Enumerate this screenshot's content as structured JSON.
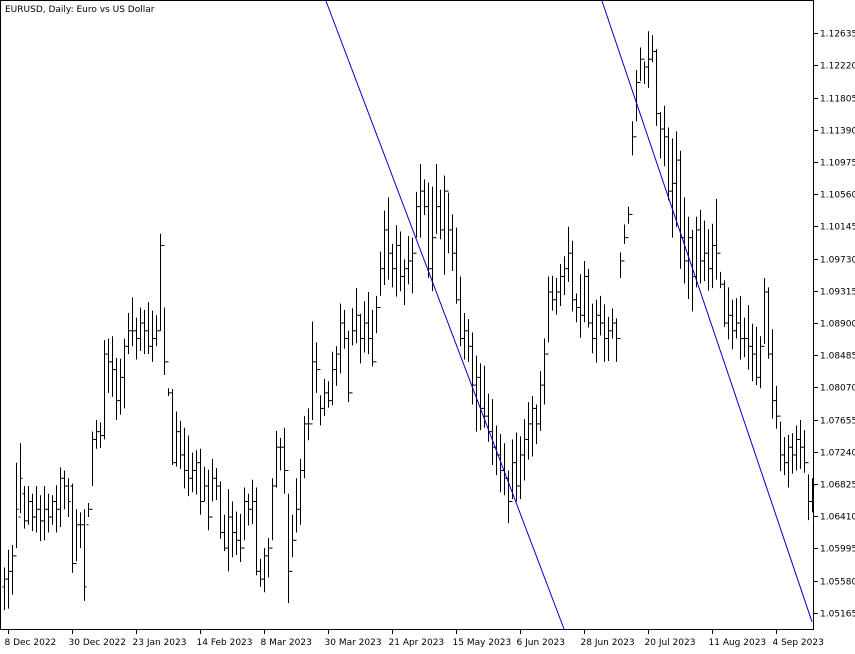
{
  "chart_data": {
    "type": "ohlc",
    "title": "EURUSD, Daily:  Euro vs US Dollar",
    "grid": false,
    "ylim": [
      1.04957,
      1.1305
    ],
    "y_ticks": [
      "1.12635",
      "1.12220",
      "1.11805",
      "1.11390",
      "1.10975",
      "1.10560",
      "1.10145",
      "1.09730",
      "1.09315",
      "1.08900",
      "1.08485",
      "1.08070",
      "1.07655",
      "1.07240",
      "1.06825",
      "1.06410",
      "1.05995",
      "1.05580",
      "1.05165"
    ],
    "x_ticks": [
      "8 Dec 2022",
      "30 Dec 2022",
      "23 Jan 2023",
      "14 Feb 2023",
      "8 Mar 2023",
      "30 Mar 2023",
      "21 Apr 2023",
      "15 May 2023",
      "6 Jun 2023",
      "28 Jun 2023",
      "20 Jul 2023",
      "11 Aug 2023",
      "4 Sep 2023"
    ],
    "x_tick_bar_index": [
      1,
      17,
      33,
      49,
      65,
      81,
      97,
      113,
      129,
      145,
      161,
      177,
      193
    ],
    "bar_count": 202,
    "colors": {
      "bar": "#000000",
      "trendline": "#0000c8",
      "frame": "#000000",
      "background": "#ffffff"
    },
    "trendlines": [
      {
        "start": {
          "bar": 80.5,
          "price": 1.1305
        },
        "end": {
          "bar": 140.0,
          "price": 1.04957
        }
      },
      {
        "start": {
          "bar": 149.5,
          "price": 1.1305
        },
        "end": {
          "bar": 202.0,
          "price": 1.0505
        }
      }
    ],
    "bars": [
      [
        1.055,
        1.0575,
        1.052,
        1.056
      ],
      [
        1.056,
        1.0598,
        1.0522,
        1.057
      ],
      [
        1.057,
        1.0604,
        1.054,
        1.059
      ],
      [
        1.059,
        1.071,
        1.06,
        1.065
      ],
      [
        1.064,
        1.0735,
        1.0645,
        1.069
      ],
      [
        1.067,
        1.068,
        1.0625,
        1.0635
      ],
      [
        1.0635,
        1.068,
        1.063,
        1.066
      ],
      [
        1.066,
        1.067,
        1.0622,
        1.064
      ],
      [
        1.064,
        1.068,
        1.062,
        1.065
      ],
      [
        1.065,
        1.0668,
        1.0609,
        1.0635
      ],
      [
        1.0635,
        1.068,
        1.061,
        1.065
      ],
      [
        1.065,
        1.067,
        1.062,
        1.064
      ],
      [
        1.064,
        1.0668,
        1.063,
        1.066
      ],
      [
        1.066,
        1.0681,
        1.062,
        1.065
      ],
      [
        1.065,
        1.0704,
        1.0627,
        1.069
      ],
      [
        1.069,
        1.07,
        1.065,
        1.068
      ],
      [
        1.068,
        1.069,
        1.064,
        1.066
      ],
      [
        1.068,
        1.0683,
        1.0568,
        1.058
      ],
      [
        1.058,
        1.065,
        1.0583,
        1.063
      ],
      [
        1.063,
        1.0646,
        1.06,
        1.063
      ],
      [
        1.063,
        1.065,
        1.0532,
        1.055
      ],
      [
        1.063,
        1.0658,
        1.064,
        1.065
      ],
      [
        1.065,
        1.075,
        1.068,
        1.074
      ],
      [
        1.074,
        1.0765,
        1.0728,
        1.075
      ],
      [
        1.075,
        1.0762,
        1.0729,
        1.0745
      ],
      [
        1.0745,
        1.0868,
        1.074,
        1.085
      ],
      [
        1.085,
        1.087,
        1.08,
        1.084
      ],
      [
        1.084,
        1.0873,
        1.0795,
        1.083
      ],
      [
        1.083,
        1.0845,
        1.0765,
        1.079
      ],
      [
        1.079,
        1.0844,
        1.0772,
        1.082
      ],
      [
        1.082,
        1.087,
        1.078,
        1.086
      ],
      [
        1.086,
        1.0903,
        1.085,
        1.088
      ],
      [
        1.088,
        1.0923,
        1.086,
        1.088
      ],
      [
        1.088,
        1.0897,
        1.0843,
        1.087
      ],
      [
        1.087,
        1.091,
        1.0854,
        1.089
      ],
      [
        1.089,
        1.0907,
        1.085,
        1.088
      ],
      [
        1.088,
        1.0917,
        1.085,
        1.086
      ],
      [
        1.086,
        1.0906,
        1.084,
        1.087
      ],
      [
        1.087,
        1.09,
        1.086,
        1.088
      ],
      [
        1.088,
        1.1005,
        1.088,
        1.099
      ],
      [
        1.099,
        1.091,
        1.0823,
        1.084
      ],
      [
        1.084,
        1.0806,
        1.0796,
        1.08
      ],
      [
        1.08,
        1.0805,
        1.0707,
        1.071
      ],
      [
        1.071,
        1.0776,
        1.0705,
        1.075
      ],
      [
        1.075,
        1.0764,
        1.0702,
        1.072
      ],
      [
        1.072,
        1.0755,
        1.0677,
        1.07
      ],
      [
        1.07,
        1.0745,
        1.0667,
        1.069
      ],
      [
        1.069,
        1.0723,
        1.0672,
        1.07
      ],
      [
        1.07,
        1.0726,
        1.0669,
        1.071
      ],
      [
        1.071,
        1.0728,
        1.0643,
        1.066
      ],
      [
        1.066,
        1.0705,
        1.066,
        1.068
      ],
      [
        1.068,
        1.0701,
        1.0623,
        1.064
      ],
      [
        1.064,
        1.0715,
        1.066,
        1.069
      ],
      [
        1.069,
        1.0703,
        1.0662,
        1.068
      ],
      [
        1.068,
        1.0686,
        1.0612,
        1.062
      ],
      [
        1.062,
        1.0643,
        1.0596,
        1.06
      ],
      [
        1.06,
        1.0676,
        1.057,
        1.064
      ],
      [
        1.064,
        1.066,
        1.0588,
        1.062
      ],
      [
        1.062,
        1.0647,
        1.0591,
        1.061
      ],
      [
        1.061,
        1.0644,
        1.0582,
        1.06
      ],
      [
        1.06,
        1.0678,
        1.061,
        1.066
      ],
      [
        1.066,
        1.067,
        1.0629,
        1.065
      ],
      [
        1.065,
        1.0688,
        1.0631,
        1.066
      ],
      [
        1.066,
        1.0678,
        1.0565,
        1.057
      ],
      [
        1.057,
        1.0586,
        1.055,
        1.056
      ],
      [
        1.056,
        1.06,
        1.0543,
        1.059
      ],
      [
        1.059,
        1.0613,
        1.0562,
        1.06
      ],
      [
        1.06,
        1.069,
        1.061,
        1.068
      ],
      [
        1.068,
        1.0751,
        1.0678,
        1.073
      ],
      [
        1.073,
        1.0742,
        1.07,
        1.073
      ],
      [
        1.073,
        1.0755,
        1.067,
        1.07
      ],
      [
        1.07,
        1.067,
        1.0529,
        1.057
      ],
      [
        1.057,
        1.0643,
        1.0588,
        1.061
      ],
      [
        1.061,
        1.069,
        1.062,
        1.065
      ],
      [
        1.065,
        1.0715,
        1.063,
        1.07
      ],
      [
        1.07,
        1.077,
        1.069,
        1.076
      ],
      [
        1.076,
        1.078,
        1.0739,
        1.076
      ],
      [
        1.076,
        1.0892,
        1.0765,
        1.084
      ],
      [
        1.084,
        1.0865,
        1.08,
        1.083
      ],
      [
        1.083,
        1.0797,
        1.0758,
        1.078
      ],
      [
        1.078,
        1.0818,
        1.077,
        1.08
      ],
      [
        1.08,
        1.0815,
        1.0781,
        1.079
      ],
      [
        1.079,
        1.0853,
        1.0784,
        1.083
      ],
      [
        1.083,
        1.086,
        1.0809,
        1.085
      ],
      [
        1.085,
        1.0915,
        1.0825,
        1.089
      ],
      [
        1.089,
        1.0907,
        1.0857,
        1.087
      ],
      [
        1.087,
        1.088,
        1.0788,
        1.08
      ],
      [
        1.08,
        1.0909,
        1.0861,
        1.088
      ],
      [
        1.088,
        1.0935,
        1.0864,
        1.09
      ],
      [
        1.09,
        1.0902,
        1.0838,
        1.087
      ],
      [
        1.087,
        1.0918,
        1.0852,
        1.089
      ],
      [
        1.089,
        1.093,
        1.085,
        1.087
      ],
      [
        1.087,
        1.0907,
        1.0834,
        1.084
      ],
      [
        1.084,
        1.0925,
        1.0877,
        1.091
      ],
      [
        1.091,
        1.0982,
        1.0925,
        1.096
      ],
      [
        1.096,
        1.1035,
        1.0939,
        1.101
      ],
      [
        1.101,
        1.1052,
        1.0946,
        1.098
      ],
      [
        1.098,
        1.0992,
        1.0936,
        1.096
      ],
      [
        1.096,
        1.1016,
        1.0924,
        1.099
      ],
      [
        1.099,
        1.1008,
        1.0931,
        1.095
      ],
      [
        1.095,
        1.0972,
        1.0913,
        1.096
      ],
      [
        1.096,
        1.1002,
        1.094,
        1.097
      ],
      [
        1.097,
        1.1,
        1.0928,
        1.098
      ],
      [
        1.098,
        1.1059,
        1.1,
        1.104
      ],
      [
        1.104,
        1.1095,
        1.1,
        1.106
      ],
      [
        1.106,
        1.1075,
        1.1029,
        1.104
      ],
      [
        1.104,
        1.1071,
        1.0948,
        1.096
      ],
      [
        1.096,
        1.1066,
        1.0931,
        1.1
      ],
      [
        1.1,
        1.1095,
        1.1005,
        1.104
      ],
      [
        1.104,
        1.1062,
        1.0998,
        1.101
      ],
      [
        1.101,
        1.108,
        1.0952,
        1.106
      ],
      [
        1.106,
        1.1058,
        1.098,
        1.101
      ],
      [
        1.101,
        1.103,
        1.0957,
        1.098
      ],
      [
        1.098,
        1.1013,
        1.0915,
        1.092
      ],
      [
        1.092,
        1.095,
        1.086,
        1.087
      ],
      [
        1.087,
        1.0903,
        1.0843,
        1.088
      ],
      [
        1.088,
        1.0895,
        1.084,
        1.086
      ],
      [
        1.086,
        1.0878,
        1.0785,
        1.081
      ],
      [
        1.081,
        1.0848,
        1.075,
        1.082
      ],
      [
        1.082,
        1.0838,
        1.0752,
        1.078
      ],
      [
        1.078,
        1.0835,
        1.0755,
        1.077
      ],
      [
        1.077,
        1.0799,
        1.0737,
        1.075
      ],
      [
        1.075,
        1.0792,
        1.0707,
        1.073
      ],
      [
        1.073,
        1.0758,
        1.0694,
        1.072
      ],
      [
        1.072,
        1.0747,
        1.0672,
        1.07
      ],
      [
        1.07,
        1.0735,
        1.0668,
        1.069
      ],
      [
        1.069,
        1.07,
        1.0632,
        1.066
      ],
      [
        1.066,
        1.074,
        1.0663,
        1.071
      ],
      [
        1.071,
        1.0749,
        1.066,
        1.068
      ],
      [
        1.068,
        1.0744,
        1.0663,
        1.072
      ],
      [
        1.072,
        1.0766,
        1.0687,
        1.074
      ],
      [
        1.074,
        1.0788,
        1.0714,
        1.076
      ],
      [
        1.076,
        1.0796,
        1.0718,
        1.078
      ],
      [
        1.078,
        1.0785,
        1.0734,
        1.076
      ],
      [
        1.076,
        1.0828,
        1.0751,
        1.081
      ],
      [
        1.081,
        1.087,
        1.0785,
        1.085
      ],
      [
        1.085,
        1.095,
        1.0865,
        1.093
      ],
      [
        1.093,
        1.0951,
        1.0906,
        1.092
      ],
      [
        1.092,
        1.0948,
        1.0901,
        1.093
      ],
      [
        1.093,
        1.0966,
        1.0912,
        1.095
      ],
      [
        1.095,
        1.0976,
        1.0926,
        1.096
      ],
      [
        1.096,
        1.1014,
        1.0943,
        1.098
      ],
      [
        1.098,
        1.0996,
        1.0905,
        1.092
      ],
      [
        1.092,
        1.0928,
        1.0891,
        1.091
      ],
      [
        1.091,
        1.0953,
        1.0871,
        1.09
      ],
      [
        1.09,
        1.097,
        1.0891,
        1.095
      ],
      [
        1.095,
        1.096,
        1.0884,
        1.089
      ],
      [
        1.089,
        1.0915,
        1.0851,
        1.087
      ],
      [
        1.087,
        1.092,
        1.0839,
        1.09
      ],
      [
        1.09,
        1.0925,
        1.0874,
        1.089
      ],
      [
        1.089,
        1.0914,
        1.084,
        1.087
      ],
      [
        1.087,
        1.0898,
        1.0841,
        1.088
      ],
      [
        1.088,
        1.0909,
        1.087,
        1.089
      ],
      [
        1.089,
        1.0896,
        1.084,
        1.087
      ],
      [
        1.087,
        1.0981,
        1.0948,
        1.097
      ],
      [
        1.097,
        1.1017,
        1.0992,
        1.1
      ],
      [
        1.1,
        1.104,
        1.1018,
        1.103
      ],
      [
        1.103,
        1.115,
        1.1106,
        1.113
      ],
      [
        1.113,
        1.1216,
        1.115,
        1.12
      ],
      [
        1.12,
        1.1245,
        1.1202,
        1.123
      ],
      [
        1.123,
        1.1227,
        1.1198,
        1.122
      ],
      [
        1.122,
        1.1266,
        1.1193,
        1.123
      ],
      [
        1.123,
        1.1261,
        1.1226,
        1.124
      ],
      [
        1.124,
        1.1243,
        1.1144,
        1.116
      ],
      [
        1.116,
        1.1162,
        1.1102,
        1.114
      ],
      [
        1.114,
        1.117,
        1.1092,
        1.113
      ],
      [
        1.113,
        1.1142,
        1.1048,
        1.106
      ],
      [
        1.106,
        1.1128,
        1.1,
        1.107
      ],
      [
        1.107,
        1.1137,
        1.1014,
        1.11
      ],
      [
        1.11,
        1.1112,
        1.096,
        1.1
      ],
      [
        1.1,
        1.1052,
        1.0941,
        1.097
      ],
      [
        1.097,
        1.1027,
        1.0921,
        1.1
      ],
      [
        1.1,
        1.101,
        1.0905,
        1.095
      ],
      [
        1.095,
        1.1027,
        1.0936,
        1.101
      ],
      [
        1.101,
        1.1036,
        1.0941,
        1.097
      ],
      [
        1.097,
        1.1022,
        1.0944,
        1.098
      ],
      [
        1.098,
        1.1011,
        1.0932,
        1.096
      ],
      [
        1.096,
        1.1018,
        1.0935,
        1.099
      ],
      [
        1.099,
        1.105,
        1.0946,
        1.098
      ],
      [
        1.098,
        1.0956,
        1.0935,
        1.094
      ],
      [
        1.094,
        1.0945,
        1.0885,
        1.089
      ],
      [
        1.089,
        1.0936,
        1.0869,
        1.09
      ],
      [
        1.09,
        1.092,
        1.0856,
        1.088
      ],
      [
        1.088,
        1.0922,
        1.087,
        1.089
      ],
      [
        1.089,
        1.0925,
        1.0843,
        1.087
      ],
      [
        1.087,
        1.0897,
        1.0846,
        1.087
      ],
      [
        1.087,
        1.0913,
        1.083,
        1.086
      ],
      [
        1.086,
        1.0889,
        1.0815,
        1.085
      ],
      [
        1.085,
        1.0885,
        1.081,
        1.082
      ],
      [
        1.082,
        1.0873,
        1.0806,
        1.086
      ],
      [
        1.086,
        1.0948,
        1.0863,
        1.093
      ],
      [
        1.093,
        1.0936,
        1.0844,
        1.085
      ],
      [
        1.085,
        1.0882,
        1.0767,
        1.079
      ],
      [
        1.079,
        1.0809,
        1.0754,
        1.077
      ],
      [
        1.077,
        1.0763,
        1.0699,
        1.072
      ],
      [
        1.072,
        1.0743,
        1.0694,
        1.071
      ],
      [
        1.071,
        1.0746,
        1.0678,
        1.073
      ],
      [
        1.073,
        1.0748,
        1.0696,
        1.072
      ],
      [
        1.072,
        1.0758,
        1.07,
        1.074
      ],
      [
        1.074,
        1.0765,
        1.0702,
        1.073
      ],
      [
        1.073,
        1.0752,
        1.0697,
        1.071
      ],
      [
        1.071,
        1.0695,
        1.0636,
        1.066
      ],
      [
        1.066,
        1.069,
        1.0646,
        1.068
      ]
    ]
  }
}
